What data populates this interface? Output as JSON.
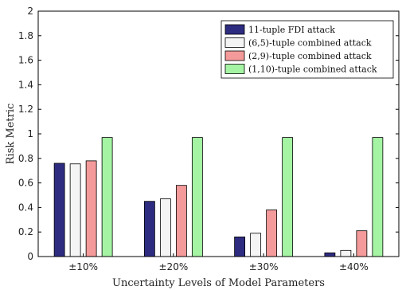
{
  "chart_data": {
    "type": "bar",
    "categories": [
      "±10%",
      "±20%",
      "±30%",
      "±40%"
    ],
    "xlabel": "Uncertainty Levels of Model Parameters",
    "ylabel": "Risk Metric",
    "ylim": [
      0,
      2
    ],
    "yticks": [
      "0",
      "0.2",
      "0.4",
      "0.6",
      "0.8",
      "1",
      "1.2",
      "1.4",
      "1.6",
      "1.8",
      "2"
    ],
    "grid": false,
    "legend_position": "top-right",
    "series": [
      {
        "name": "11-tuple FDI attack",
        "color": "#2e2c80",
        "values": [
          0.76,
          0.45,
          0.16,
          0.03
        ]
      },
      {
        "name": "(6,5)-tuple combined attack",
        "color": "#f4f4f4",
        "values": [
          0.755,
          0.47,
          0.19,
          0.05
        ]
      },
      {
        "name": "(2,9)-tuple combined attack",
        "color": "#f49a9a",
        "values": [
          0.78,
          0.58,
          0.38,
          0.21
        ]
      },
      {
        "name": "(1,10)-tuple combined attack",
        "color": "#a4f4a4",
        "values": [
          0.97,
          0.97,
          0.97,
          0.97
        ]
      }
    ]
  }
}
